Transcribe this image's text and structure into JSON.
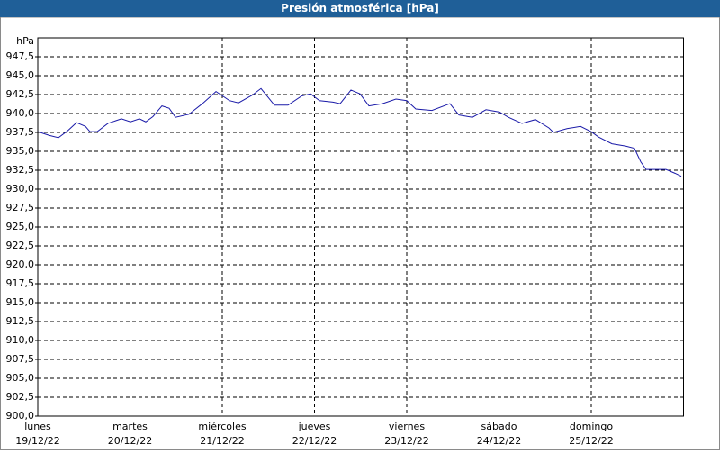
{
  "chart_data": {
    "type": "line",
    "title": "Presión atmosférica [hPa]",
    "y_unit": "hPa",
    "xlim": [
      0,
      7
    ],
    "ylim": [
      900,
      950
    ],
    "grid": true,
    "xticks": [
      {
        "value": 0,
        "label": "lunes"
      },
      {
        "value": 1,
        "label": "martes"
      },
      {
        "value": 2,
        "label": "miércoles"
      },
      {
        "value": 3,
        "label": "jueves"
      },
      {
        "value": 4,
        "label": "viernes"
      },
      {
        "value": 5,
        "label": "sábado"
      },
      {
        "value": 6,
        "label": "domingo"
      }
    ],
    "xtick_dates": [
      "19/12/22",
      "20/12/22",
      "21/12/22",
      "22/12/22",
      "23/12/22",
      "24/12/22",
      "25/12/22"
    ],
    "yticks": [
      {
        "value": 900,
        "label": "900,0"
      },
      {
        "value": 902.5,
        "label": "902,5"
      },
      {
        "value": 905,
        "label": "905,0"
      },
      {
        "value": 907.5,
        "label": "907,5"
      },
      {
        "value": 910,
        "label": "910,0"
      },
      {
        "value": 912.5,
        "label": "912,5"
      },
      {
        "value": 915,
        "label": "915,0"
      },
      {
        "value": 917.5,
        "label": "917,5"
      },
      {
        "value": 920,
        "label": "920,0"
      },
      {
        "value": 922.5,
        "label": "922,5"
      },
      {
        "value": 925,
        "label": "925,0"
      },
      {
        "value": 927.5,
        "label": "927,5"
      },
      {
        "value": 930,
        "label": "930,0"
      },
      {
        "value": 932.5,
        "label": "932,5"
      },
      {
        "value": 935,
        "label": "935,0"
      },
      {
        "value": 937.5,
        "label": "937,5"
      },
      {
        "value": 940,
        "label": "940,0"
      },
      {
        "value": 942.5,
        "label": "942,5"
      },
      {
        "value": 945,
        "label": "945,0"
      },
      {
        "value": 947.5,
        "label": "947,5"
      }
    ],
    "x": [
      0,
      0.127,
      0.224,
      0.322,
      0.42,
      0.517,
      0.566,
      0.644,
      0.761,
      0.907,
      1.005,
      1.102,
      1.171,
      1.249,
      1.346,
      1.424,
      1.493,
      1.639,
      1.785,
      1.932,
      2.078,
      2.176,
      2.322,
      2.42,
      2.566,
      2.712,
      2.859,
      2.956,
      3.054,
      3.2,
      3.278,
      3.395,
      3.493,
      3.59,
      3.737,
      3.883,
      4.0,
      4.098,
      4.273,
      4.468,
      4.566,
      4.712,
      4.859,
      5.005,
      5.102,
      5.249,
      5.395,
      5.541,
      5.59,
      5.737,
      5.883,
      6.0,
      6.078,
      6.224,
      6.371,
      6.468,
      6.537,
      6.595,
      6.81,
      6.907,
      6.976
    ],
    "series": [
      {
        "color": "#1a1aa8",
        "values": [
          937.6,
          937.1,
          936.8,
          937.7,
          938.8,
          938.3,
          937.6,
          937.6,
          938.7,
          939.3,
          938.9,
          939.3,
          938.9,
          939.6,
          941.0,
          940.7,
          939.5,
          939.9,
          941.3,
          942.9,
          941.7,
          941.4,
          942.4,
          943.3,
          941.1,
          941.1,
          942.3,
          942.6,
          941.7,
          941.5,
          941.3,
          943.1,
          942.6,
          941.0,
          941.3,
          941.9,
          941.7,
          940.6,
          940.4,
          941.3,
          939.8,
          939.5,
          940.5,
          940.2,
          939.5,
          938.7,
          939.2,
          938.1,
          937.5,
          938.0,
          938.3,
          937.6,
          936.9,
          936.0,
          935.7,
          935.4,
          933.6,
          932.6,
          932.6,
          932.1,
          931.7
        ]
      }
    ]
  }
}
